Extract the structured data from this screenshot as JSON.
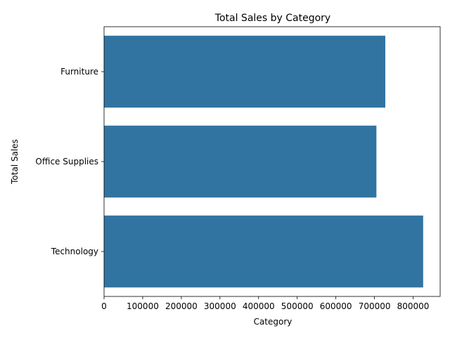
{
  "chart_data": {
    "type": "bar",
    "orientation": "horizontal",
    "title": "Total Sales by Category",
    "xlabel": "Category",
    "ylabel": "Total Sales",
    "categories": [
      "Furniture",
      "Office Supplies",
      "Technology"
    ],
    "values": [
      728000,
      705000,
      826000
    ],
    "xlim": [
      0,
      870000
    ],
    "xticks": [
      0,
      100000,
      200000,
      300000,
      400000,
      500000,
      600000,
      700000,
      800000
    ],
    "grid": false,
    "bar_color": "#3274a1"
  }
}
